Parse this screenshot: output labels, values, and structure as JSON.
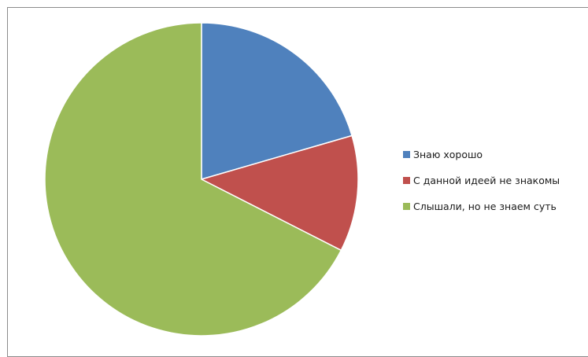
{
  "chart_data": {
    "type": "pie",
    "start_angle_deg": 0,
    "direction": "clockwise",
    "slices": [
      {
        "label": "Знаю хорошо",
        "value": 20.5,
        "color": "#4f81bd"
      },
      {
        "label": "С данной идеей не знакомы",
        "value": 12,
        "color": "#c0504d"
      },
      {
        "label": "Слышали, но не знаем суть",
        "value": 67.5,
        "color": "#9bbb59"
      }
    ],
    "legend_position": "right",
    "title": "",
    "data_labels": false
  }
}
